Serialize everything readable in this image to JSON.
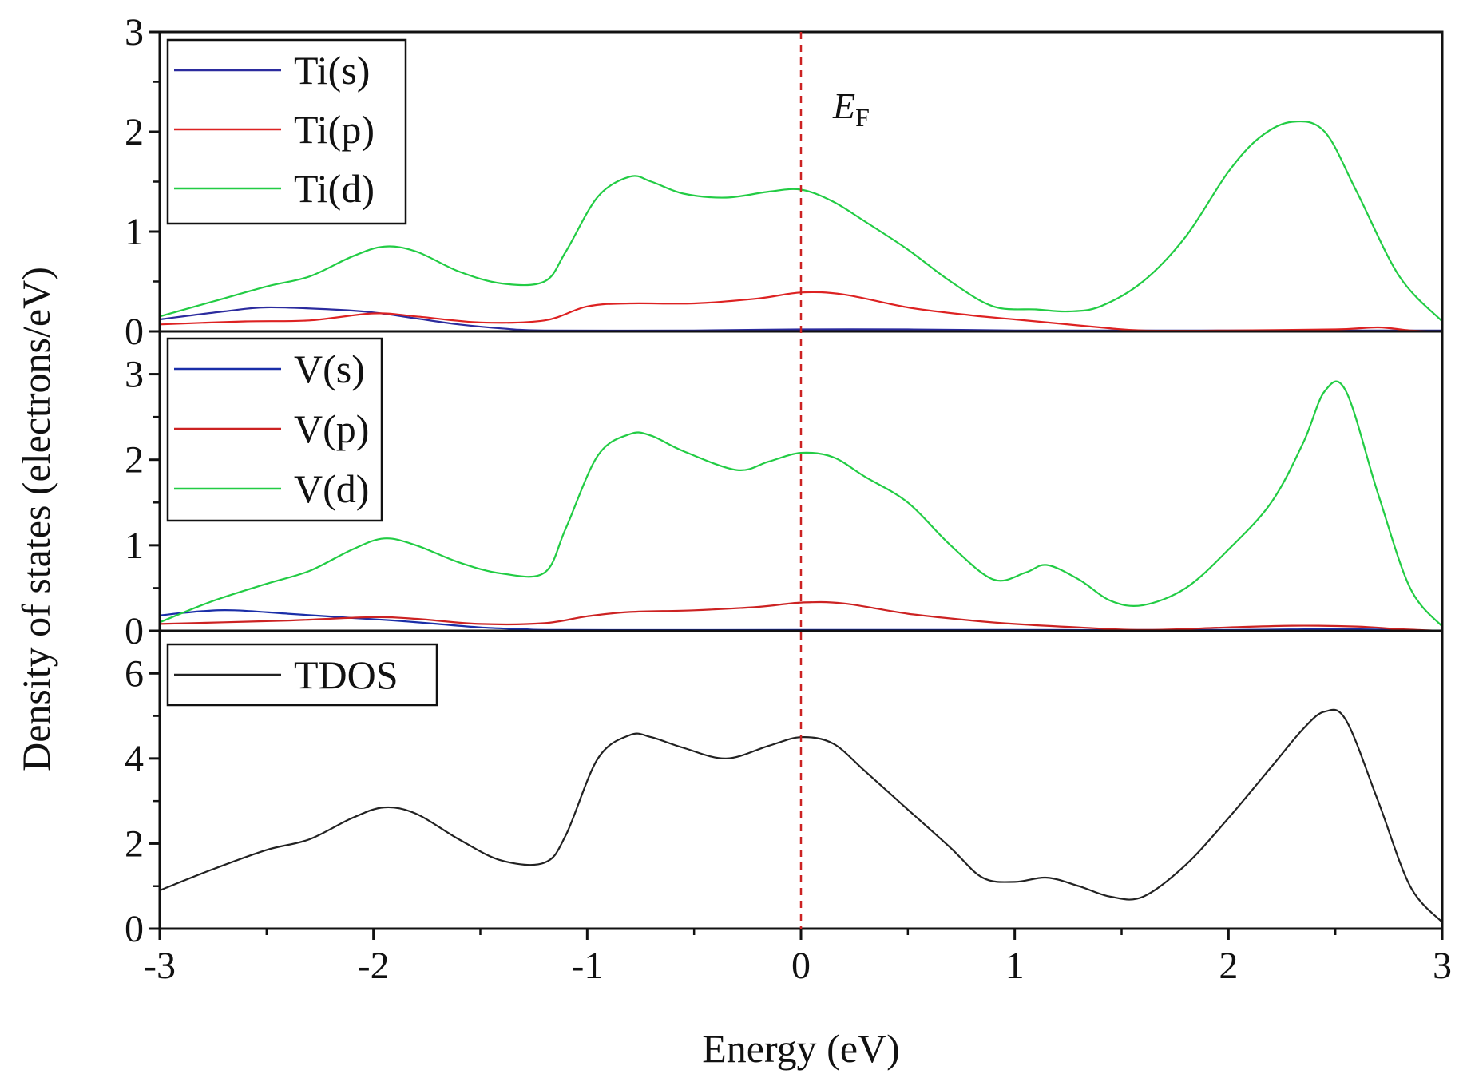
{
  "chart_data": {
    "type": "line",
    "title": "",
    "xlabel": "Energy (eV)",
    "ylabel": "Density of states (electrons/eV)",
    "xlim": [
      -3,
      3
    ],
    "x_ticks": [
      "-3",
      "-2",
      "-1",
      "0",
      "1",
      "2",
      "3"
    ],
    "fermi_level": {
      "x": 0,
      "label": "E",
      "subscript": "F",
      "color": "#cc2222"
    },
    "panels": [
      {
        "id": "ti",
        "ylim": [
          0,
          3
        ],
        "y_ticks": [
          "0",
          "1",
          "2",
          "3"
        ],
        "series": [
          {
            "name": "Ti(s)",
            "color": "#2b2b9e",
            "x": [
              -3,
              -2.7,
              -2.5,
              -2.2,
              -2.0,
              -1.8,
              -1.6,
              -1.4,
              -1.2,
              -0.5,
              0,
              0.5,
              1,
              1.5,
              2,
              2.5,
              3
            ],
            "y": [
              0.12,
              0.2,
              0.24,
              0.22,
              0.19,
              0.13,
              0.07,
              0.03,
              0.01,
              0.01,
              0.02,
              0.02,
              0.01,
              0.01,
              0.01,
              0.01,
              0.01
            ]
          },
          {
            "name": "Ti(p)",
            "color": "#dd2222",
            "x": [
              -3,
              -2.6,
              -2.3,
              -2.0,
              -1.8,
              -1.5,
              -1.2,
              -1.0,
              -0.8,
              -0.5,
              -0.2,
              0,
              0.2,
              0.5,
              0.8,
              1.0,
              1.2,
              1.4,
              1.6,
              2.0,
              2.5,
              2.7,
              2.85,
              3
            ],
            "y": [
              0.07,
              0.1,
              0.11,
              0.18,
              0.15,
              0.09,
              0.11,
              0.25,
              0.28,
              0.28,
              0.33,
              0.39,
              0.37,
              0.24,
              0.16,
              0.12,
              0.08,
              0.04,
              0.01,
              0.01,
              0.02,
              0.04,
              0.01,
              0.0
            ]
          },
          {
            "name": "Ti(d)",
            "color": "#22cc44",
            "x": [
              -3,
              -2.75,
              -2.5,
              -2.3,
              -2.1,
              -1.95,
              -1.8,
              -1.6,
              -1.4,
              -1.2,
              -1.1,
              -0.95,
              -0.8,
              -0.7,
              -0.55,
              -0.35,
              -0.15,
              0,
              0.15,
              0.3,
              0.5,
              0.7,
              0.9,
              1.1,
              1.25,
              1.4,
              1.6,
              1.8,
              2.0,
              2.15,
              2.3,
              2.45,
              2.6,
              2.8,
              3.0
            ],
            "y": [
              0.15,
              0.3,
              0.45,
              0.55,
              0.75,
              0.85,
              0.8,
              0.6,
              0.48,
              0.5,
              0.8,
              1.35,
              1.55,
              1.5,
              1.38,
              1.34,
              1.4,
              1.42,
              1.3,
              1.1,
              0.82,
              0.5,
              0.25,
              0.22,
              0.2,
              0.25,
              0.5,
              0.95,
              1.6,
              1.95,
              2.1,
              2.0,
              1.4,
              0.55,
              0.1
            ]
          }
        ]
      },
      {
        "id": "v",
        "ylim": [
          0,
          3.5
        ],
        "y_ticks": [
          "0",
          "1",
          "2",
          "3"
        ],
        "series": [
          {
            "name": "V(s)",
            "color": "#1a2ea8",
            "x": [
              -3,
              -2.8,
              -2.65,
              -2.4,
              -2.1,
              -1.9,
              -1.7,
              -1.5,
              -1.3,
              -1.1,
              0,
              1,
              2,
              2.5,
              3
            ],
            "y": [
              0.18,
              0.23,
              0.24,
              0.2,
              0.15,
              0.12,
              0.08,
              0.04,
              0.02,
              0.01,
              0.01,
              0.01,
              0.01,
              0.02,
              0.0
            ]
          },
          {
            "name": "V(p)",
            "color": "#cc2222",
            "x": [
              -3,
              -2.7,
              -2.4,
              -2.0,
              -1.8,
              -1.5,
              -1.2,
              -1.0,
              -0.8,
              -0.5,
              -0.2,
              0,
              0.2,
              0.5,
              0.8,
              1.0,
              1.3,
              1.6,
              2.0,
              2.3,
              2.6,
              2.8,
              3
            ],
            "y": [
              0.08,
              0.1,
              0.12,
              0.16,
              0.14,
              0.08,
              0.09,
              0.17,
              0.22,
              0.24,
              0.28,
              0.33,
              0.32,
              0.2,
              0.12,
              0.08,
              0.04,
              0.01,
              0.04,
              0.06,
              0.05,
              0.02,
              0.0
            ]
          },
          {
            "name": "V(d)",
            "color": "#22cc44",
            "x": [
              -3,
              -2.75,
              -2.5,
              -2.3,
              -2.1,
              -1.95,
              -1.8,
              -1.6,
              -1.4,
              -1.2,
              -1.1,
              -0.95,
              -0.8,
              -0.7,
              -0.55,
              -0.3,
              -0.15,
              0,
              0.15,
              0.3,
              0.5,
              0.7,
              0.9,
              1.05,
              1.15,
              1.3,
              1.45,
              1.6,
              1.8,
              2.0,
              2.2,
              2.35,
              2.45,
              2.55,
              2.7,
              2.85,
              3.0
            ],
            "y": [
              0.1,
              0.35,
              0.55,
              0.7,
              0.95,
              1.08,
              1.0,
              0.8,
              0.67,
              0.68,
              1.2,
              2.05,
              2.3,
              2.28,
              2.1,
              1.88,
              1.98,
              2.08,
              2.03,
              1.8,
              1.5,
              1.0,
              0.6,
              0.68,
              0.77,
              0.6,
              0.35,
              0.3,
              0.5,
              0.95,
              1.5,
              2.2,
              2.8,
              2.8,
              1.6,
              0.5,
              0.05
            ]
          }
        ]
      },
      {
        "id": "total",
        "ylim": [
          0,
          7
        ],
        "y_ticks": [
          "0",
          "2",
          "4",
          "6"
        ],
        "series": [
          {
            "name": "TDOS",
            "color": "#222222",
            "x": [
              -3,
              -2.75,
              -2.5,
              -2.3,
              -2.1,
              -1.95,
              -1.8,
              -1.6,
              -1.4,
              -1.2,
              -1.1,
              -0.95,
              -0.8,
              -0.7,
              -0.55,
              -0.35,
              -0.15,
              0,
              0.15,
              0.3,
              0.5,
              0.7,
              0.85,
              1.0,
              1.15,
              1.3,
              1.45,
              1.6,
              1.8,
              2.0,
              2.2,
              2.35,
              2.45,
              2.55,
              2.7,
              2.85,
              3.0
            ],
            "y": [
              0.9,
              1.4,
              1.85,
              2.1,
              2.6,
              2.85,
              2.7,
              2.1,
              1.6,
              1.55,
              2.2,
              4.0,
              4.55,
              4.5,
              4.25,
              4.0,
              4.3,
              4.5,
              4.35,
              3.7,
              2.8,
              1.9,
              1.2,
              1.1,
              1.2,
              1.0,
              0.75,
              0.75,
              1.5,
              2.6,
              3.8,
              4.7,
              5.1,
              4.9,
              3.0,
              1.0,
              0.15
            ]
          }
        ]
      }
    ]
  }
}
